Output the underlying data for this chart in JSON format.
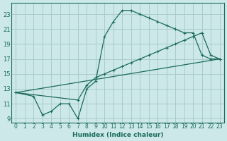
{
  "xlabel": "Humidex (Indice chaleur)",
  "xlim": [
    -0.5,
    23.5
  ],
  "ylim": [
    8.5,
    24.5
  ],
  "yticks": [
    9,
    11,
    13,
    15,
    17,
    19,
    21,
    23
  ],
  "xticks": [
    0,
    1,
    2,
    3,
    4,
    5,
    6,
    7,
    8,
    9,
    10,
    11,
    12,
    13,
    14,
    15,
    16,
    17,
    18,
    19,
    20,
    21,
    22,
    23
  ],
  "bg_color": "#cce8e8",
  "grid_color": "#aacccc",
  "line_color": "#1a6b5a",
  "line1_x": [
    0,
    2,
    3,
    4,
    5,
    6,
    7,
    8,
    9,
    10,
    11,
    12,
    13,
    14,
    15,
    16,
    17,
    18,
    19,
    20,
    21,
    22,
    23
  ],
  "line1_y": [
    12.5,
    12.0,
    9.5,
    10.0,
    11.0,
    11.0,
    9.0,
    13.0,
    14.0,
    20.0,
    22.0,
    23.5,
    23.5,
    23.0,
    22.5,
    22.0,
    21.5,
    21.0,
    20.5,
    20.5,
    17.5,
    17.0,
    17.0
  ],
  "line2_x": [
    0,
    23
  ],
  "line2_y": [
    12.5,
    17.0
  ],
  "line3_x": [
    0,
    7,
    8,
    9,
    10,
    11,
    12,
    13,
    14,
    15,
    16,
    17,
    18,
    19,
    20,
    21,
    22,
    23
  ],
  "line3_y": [
    12.5,
    11.5,
    13.5,
    14.5,
    15.0,
    15.5,
    16.0,
    16.5,
    17.0,
    17.5,
    18.0,
    18.5,
    19.0,
    19.5,
    20.0,
    20.5,
    17.5,
    17.0
  ]
}
